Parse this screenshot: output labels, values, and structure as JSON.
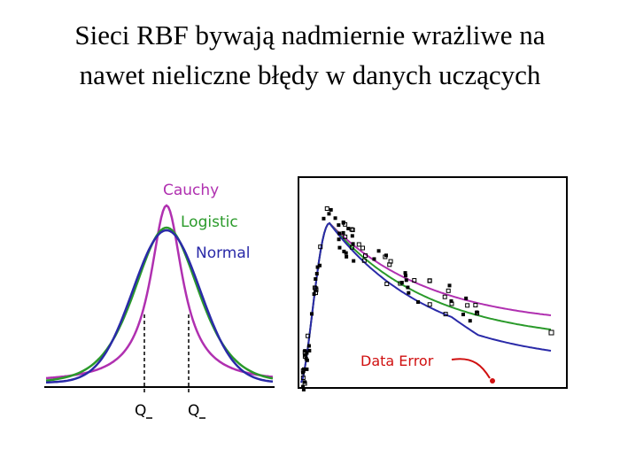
{
  "header": {
    "title_lines": [
      "Sieci RBF bywają nadmiernie wrażliwe na",
      "nawet nieliczne błędy w danych uczących"
    ]
  },
  "left_diagram": {
    "curves": [
      "Cauchy",
      "Logistic",
      "Normal"
    ],
    "quantiles": [
      "Q",
      "Q"
    ]
  },
  "right_diagram": {
    "annotation": "Data Error"
  }
}
